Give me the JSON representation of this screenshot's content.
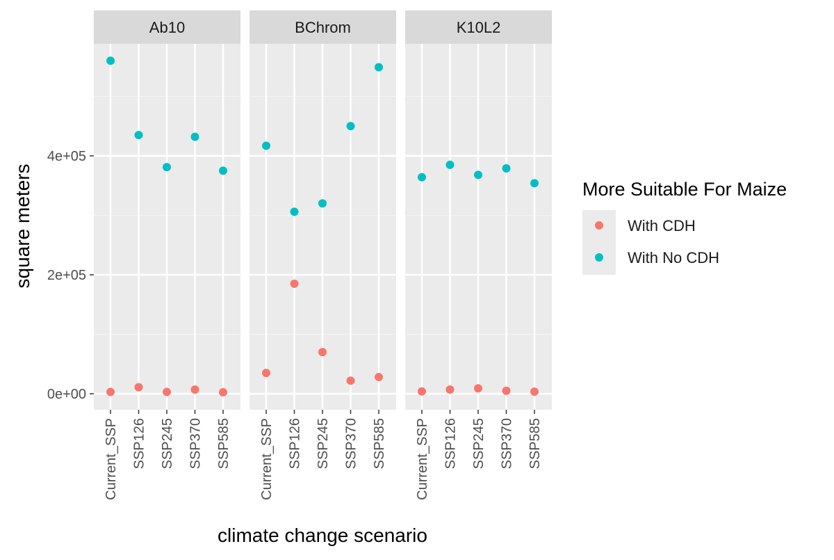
{
  "chart_data": {
    "type": "scatter",
    "facets": [
      "Ab10",
      "BChrom",
      "K10L2"
    ],
    "categories": [
      "Current_SSP",
      "SSP126",
      "SSP245",
      "SSP370",
      "SSP585"
    ],
    "xlabel": "climate change scenario",
    "ylabel": "square meters",
    "y_ticks": [
      0,
      200000,
      400000
    ],
    "y_tick_labels": [
      "0e+00",
      "2e+05",
      "4e+05"
    ],
    "ylim": [
      -25000,
      585000
    ],
    "grid": true,
    "legend": {
      "title": "More Suitable For Maize",
      "placement": "right",
      "entries": [
        {
          "name": "With CDH",
          "color": "#F8766D"
        },
        {
          "name": "With No CDH",
          "color": "#00BFC4"
        }
      ]
    },
    "series": [
      {
        "name": "With CDH",
        "color": "#F8766D",
        "values": {
          "Ab10": [
            3000,
            11000,
            3000,
            7000,
            2500
          ],
          "BChrom": [
            35000,
            185000,
            70000,
            22000,
            28000
          ],
          "K10L2": [
            4000,
            7000,
            9000,
            5000,
            3500
          ]
        }
      },
      {
        "name": "With No CDH",
        "color": "#00BFC4",
        "values": {
          "Ab10": [
            560000,
            435000,
            381000,
            432000,
            375000
          ],
          "BChrom": [
            417000,
            306000,
            320000,
            450000,
            549000
          ],
          "K10L2": [
            364000,
            385000,
            368000,
            379000,
            354000
          ]
        }
      }
    ]
  }
}
